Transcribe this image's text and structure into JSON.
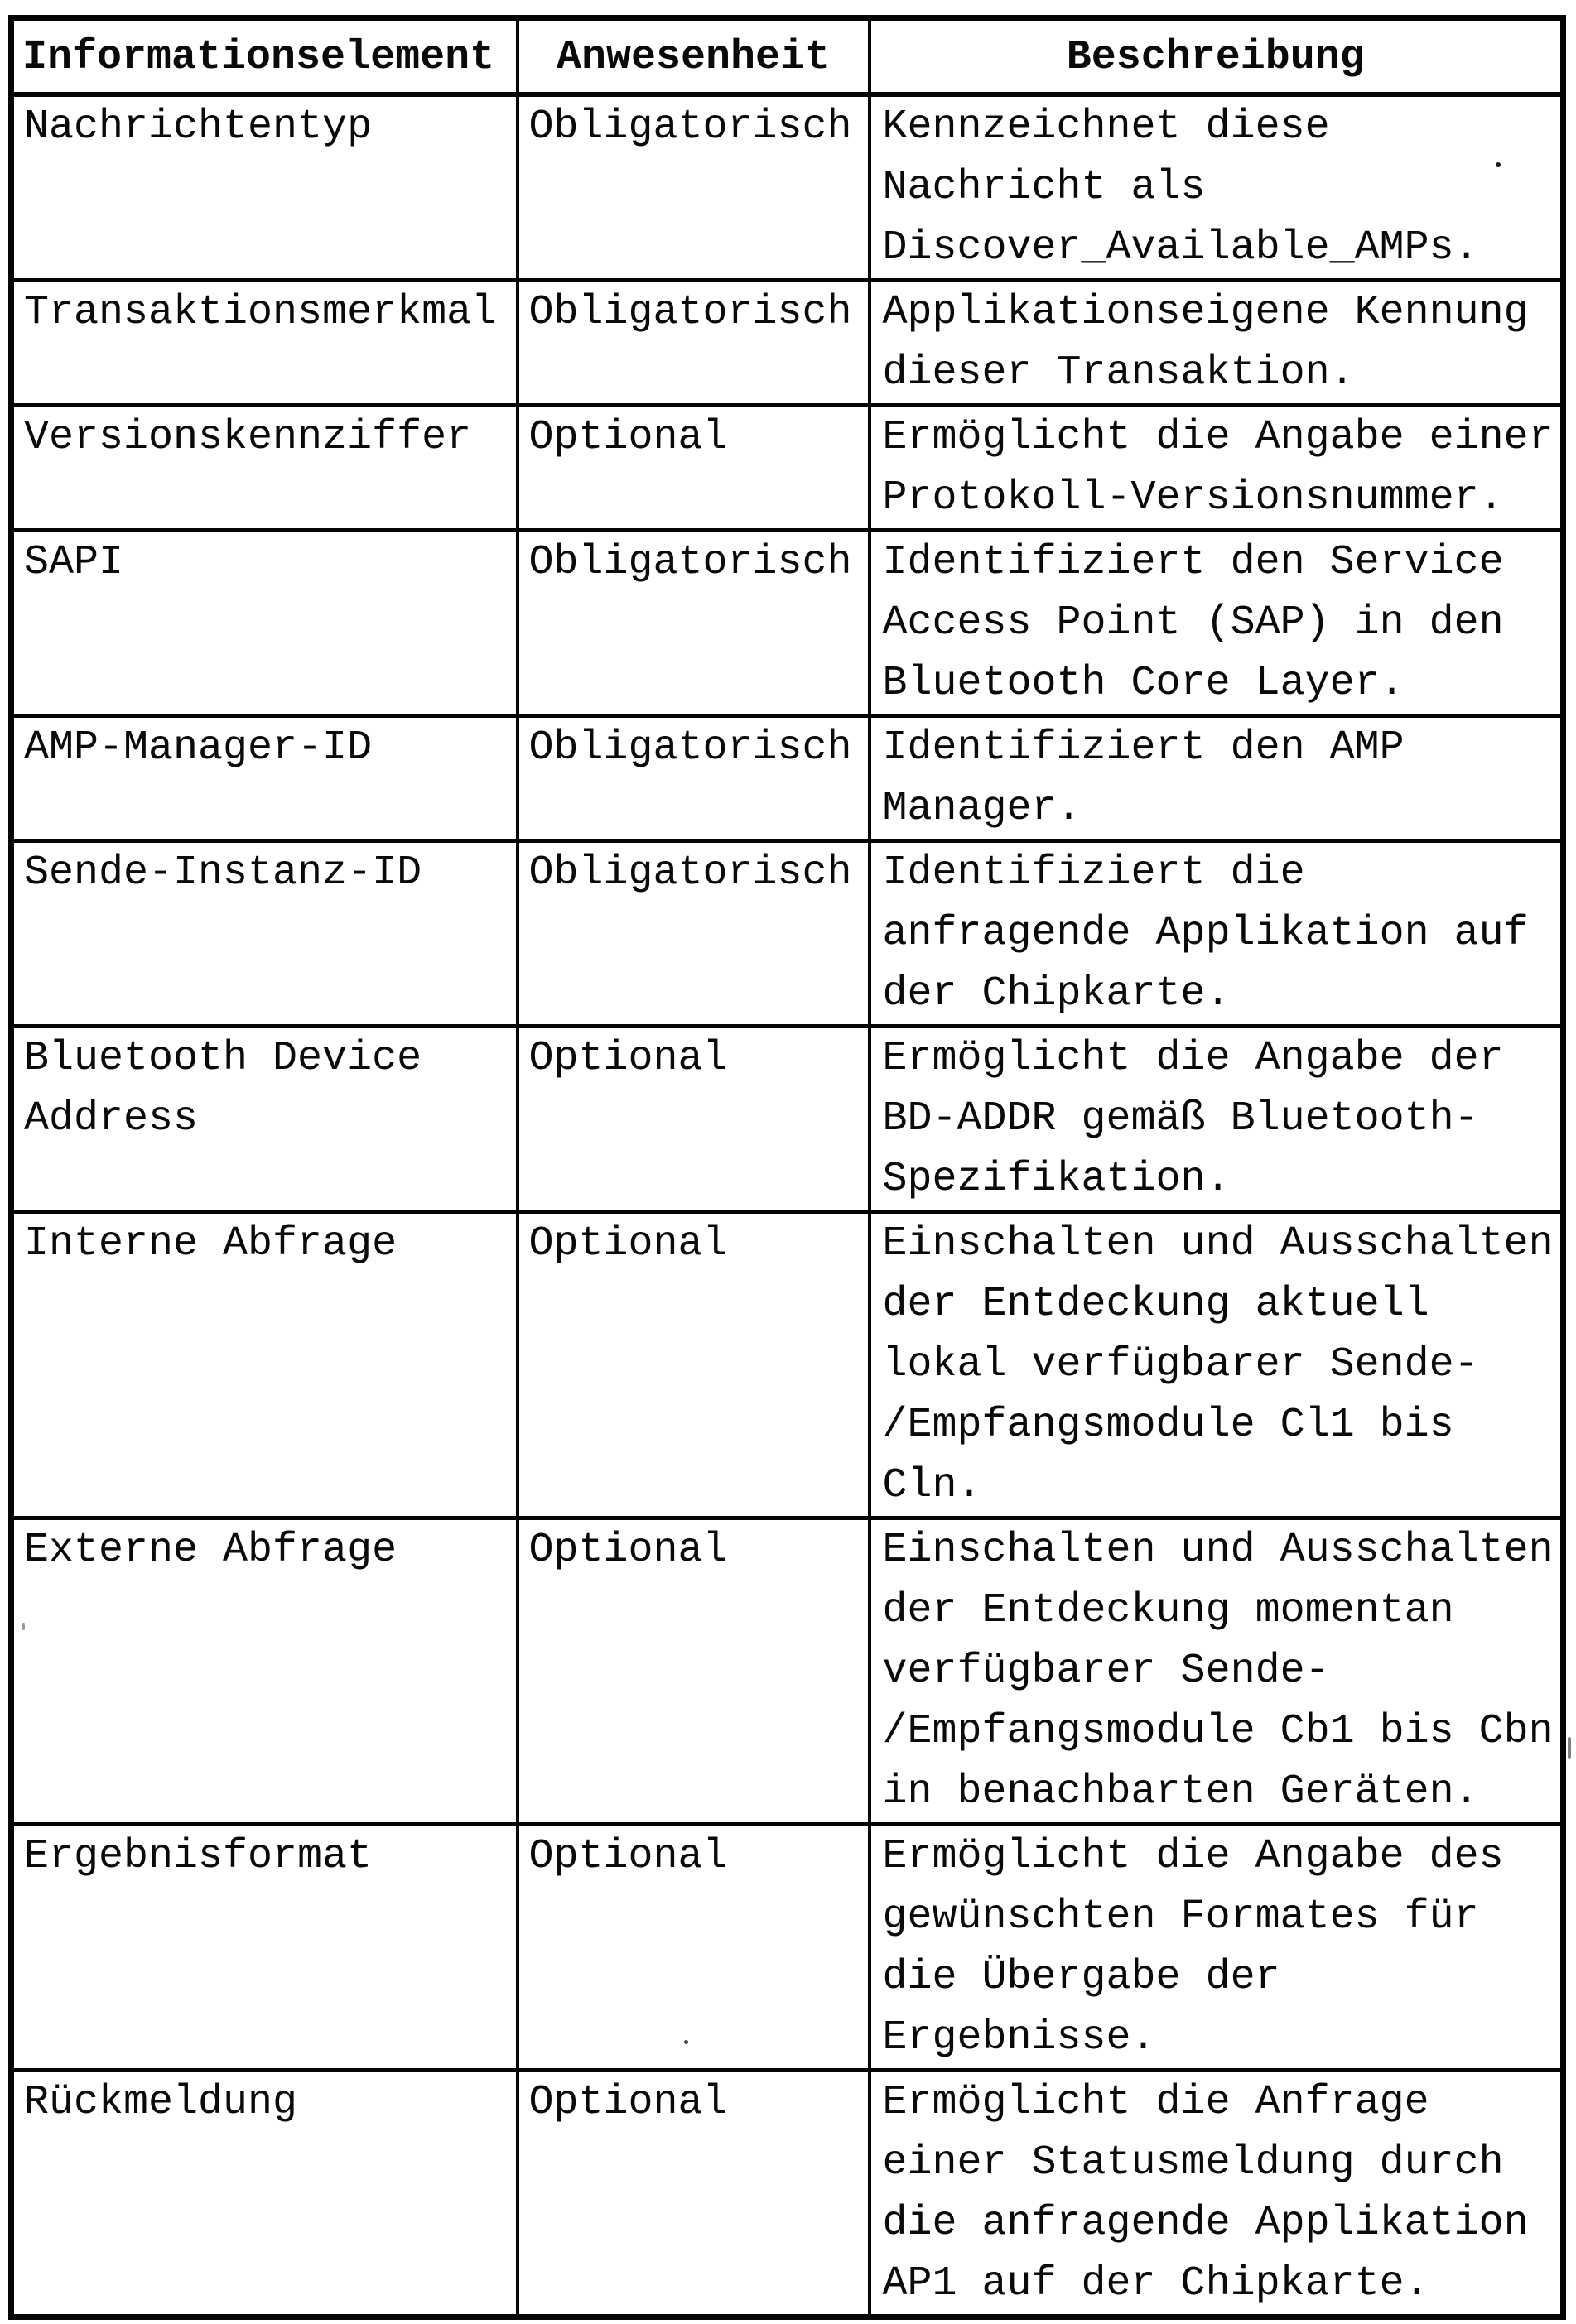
{
  "table": {
    "headers": [
      "Informationselement",
      "Anwesenheit",
      "Beschreibung"
    ],
    "rows": [
      {
        "element": "Nachrichtentyp",
        "presence": "Obligatorisch",
        "description": "Kennzeichnet diese\nNachricht als\nDiscover_Available_AMPs."
      },
      {
        "element": "Transaktionsmerkmal",
        "presence": "Obligatorisch",
        "description": "Applikationseigene Kennung\ndieser Transaktion."
      },
      {
        "element": "Versionskennziffer",
        "presence": "Optional",
        "description": "Ermöglicht die Angabe einer\nProtokoll-Versionsnummer."
      },
      {
        "element": "SAPI",
        "presence": "Obligatorisch",
        "description": "Identifiziert den Service\nAccess Point (SAP) in den\nBluetooth Core Layer."
      },
      {
        "element": "AMP-Manager-ID",
        "presence": "Obligatorisch",
        "description": "Identifiziert den AMP\nManager."
      },
      {
        "element": "Sende-Instanz-ID",
        "presence": "Obligatorisch",
        "description": "Identifiziert die\nanfragende Applikation auf\nder Chipkarte."
      },
      {
        "element": "Bluetooth Device\nAddress",
        "presence": "Optional",
        "description": "Ermöglicht die Angabe der\nBD-ADDR gemäß Bluetooth-\nSpezifikation."
      },
      {
        "element": "Interne Abfrage",
        "presence": "Optional",
        "description": "Einschalten und Ausschalten\nder Entdeckung aktuell\nlokal verfügbarer Sende-\n/Empfangsmodule Cl1 bis\nCln."
      },
      {
        "element": "Externe Abfrage",
        "presence": "Optional",
        "description": "Einschalten und Ausschalten\nder Entdeckung momentan\nverfügbarer Sende-\n/Empfangsmodule Cb1 bis Cbn\nin benachbarten Geräten."
      },
      {
        "element": "Ergebnisformat",
        "presence": "Optional",
        "description": "Ermöglicht die Angabe des\ngewünschten Formates für\ndie Übergabe der\nErgebnisse."
      },
      {
        "element": "Rückmeldung",
        "presence": "Optional",
        "description": "Ermöglicht die Anfrage\neiner Statusmeldung durch\ndie anfragende Applikation\nAP1 auf der Chipkarte."
      }
    ]
  }
}
